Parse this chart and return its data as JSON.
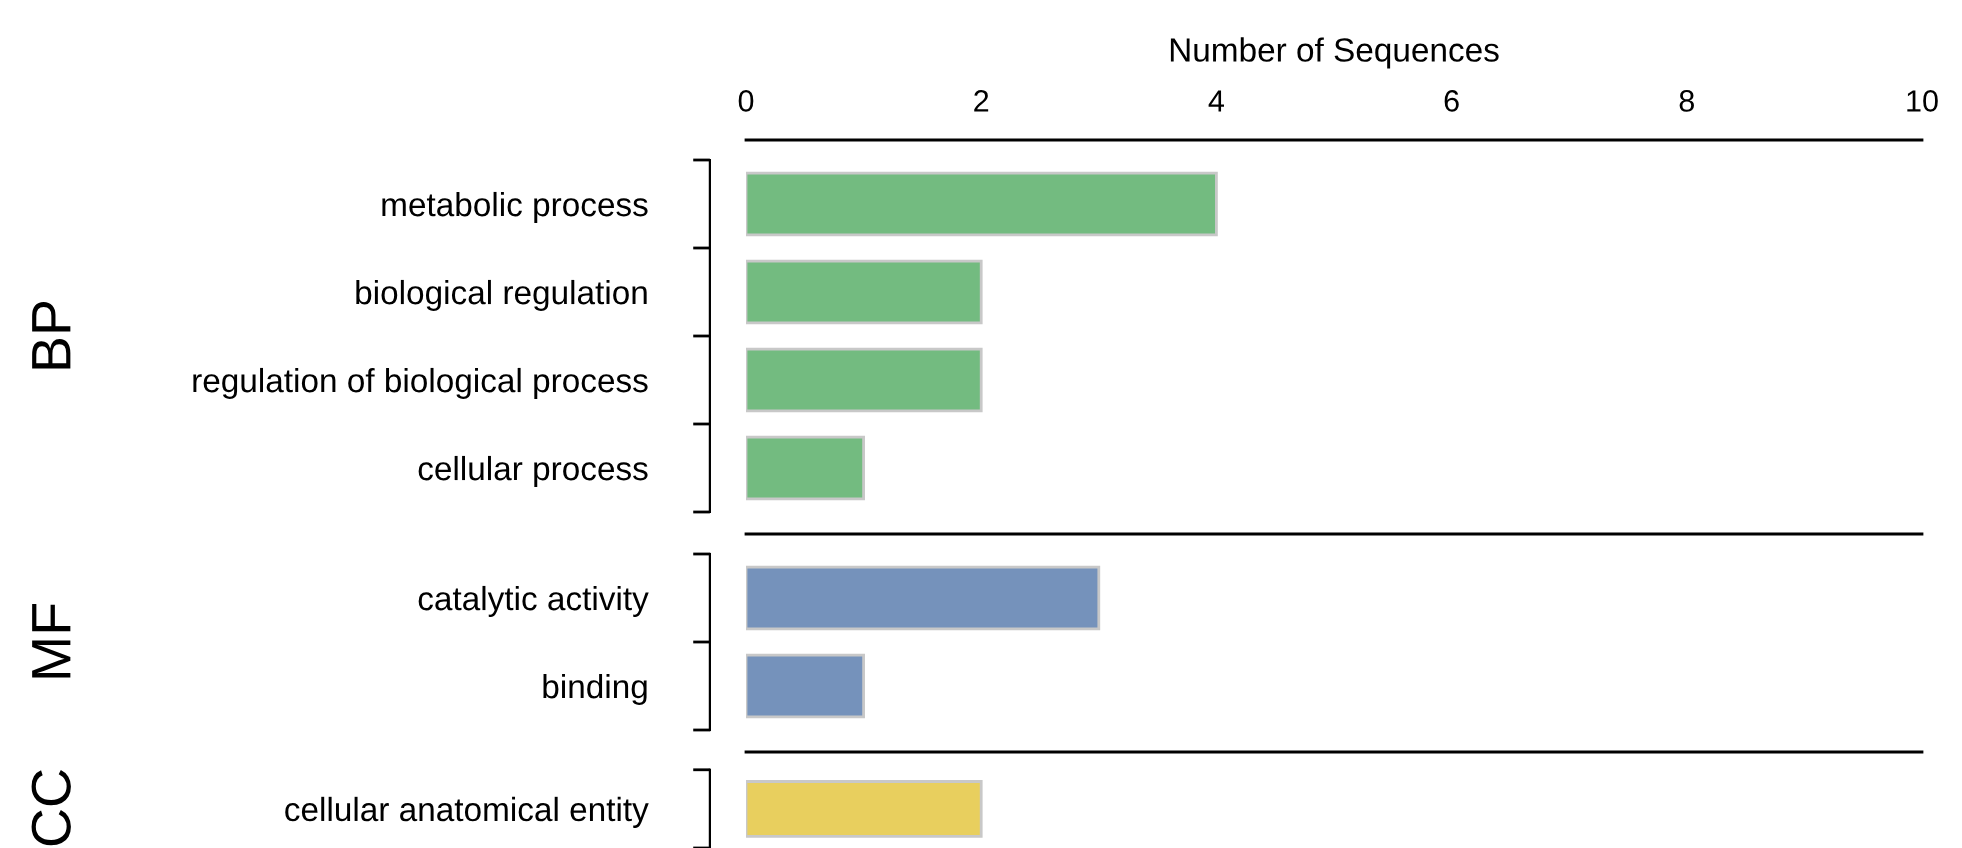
{
  "chart_data": [
    {
      "type": "bar",
      "orientation": "horizontal",
      "xlabel": "Number of Sequences",
      "ylabel": "BP",
      "categories": [
        "metabolic process",
        "biological regulation",
        "regulation of biological process",
        "cellular process"
      ],
      "values": [
        4,
        2,
        2,
        1
      ],
      "color": "#73bb80",
      "xlim": [
        0,
        10
      ],
      "xticks": [
        0,
        2,
        4,
        6,
        8,
        10
      ]
    },
    {
      "type": "bar",
      "orientation": "horizontal",
      "ylabel": "MF",
      "categories": [
        "catalytic activity",
        "binding"
      ],
      "values": [
        3,
        1
      ],
      "color": "#7592bb",
      "xlim": [
        0,
        10
      ],
      "xticks": [
        0,
        2,
        4,
        6,
        8,
        10
      ],
      "tick_labels": "y"
    },
    {
      "type": "bar",
      "orientation": "horizontal",
      "ylabel": "CC",
      "categories": [
        "cellular anatomical entity"
      ],
      "values": [
        2
      ],
      "color": "#e8cf5e",
      "xlim": [
        0,
        10
      ],
      "xticks": [
        0,
        2,
        4,
        6,
        8,
        10
      ],
      "tick_labels": "y"
    }
  ]
}
